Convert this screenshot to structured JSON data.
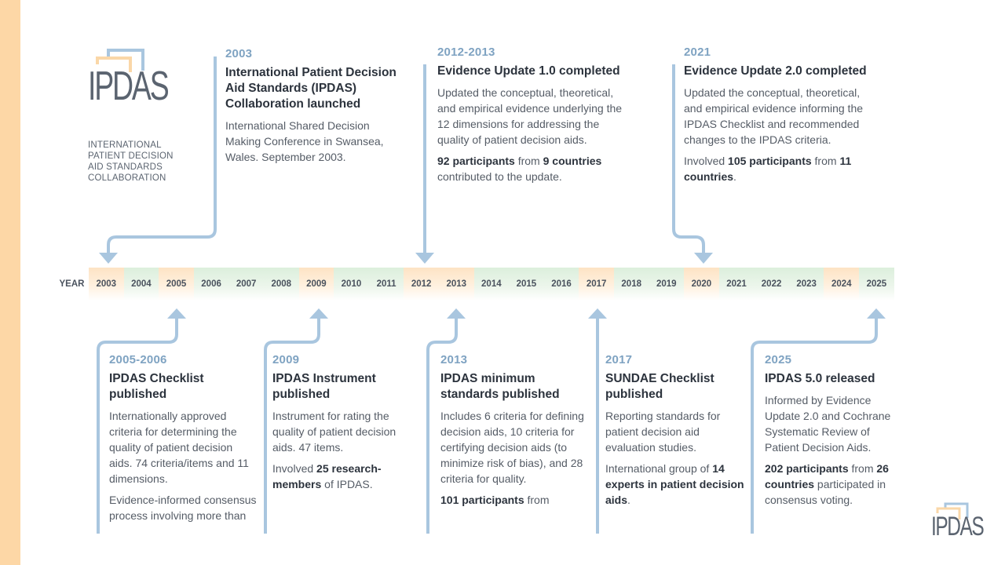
{
  "logo": {
    "wordmark": "IPDAS",
    "caption": [
      "INTERNATIONAL",
      "PATIENT DECISION",
      "AID STANDARDS",
      "COLLABORATION"
    ]
  },
  "timeline": {
    "label": "YEAR",
    "years": [
      "2003",
      "2004",
      "2005",
      "2006",
      "2007",
      "2008",
      "2009",
      "2010",
      "2011",
      "2012",
      "2013",
      "2014",
      "2015",
      "2016",
      "2017",
      "2018",
      "2019",
      "2020",
      "2021",
      "2022",
      "2023",
      "2024",
      "2025"
    ],
    "highlighted": [
      "2003",
      "2005",
      "2009",
      "2012",
      "2013",
      "2017",
      "2020",
      "2024"
    ]
  },
  "top_events": [
    {
      "year": "2003",
      "title": "International Patient Decision Aid Standards (IPDAS) Collaboration launched",
      "body": [
        "International Shared Decision Making Conference in Swansea, Wales. September 2003."
      ]
    },
    {
      "year": "2012-2013",
      "title": "Evidence Update 1.0 completed",
      "body": [
        "Updated the conceptual, theoretical, and empirical evidence underlying the 12 dimensions for addressing the quality of patient decision aids."
      ],
      "highlight_pre": "",
      "highlight_bold1": "92 participants",
      "highlight_mid": " from ",
      "highlight_bold2": "9 countries",
      "highlight_post": " contributed to the update."
    },
    {
      "year": "2021",
      "title": "Evidence Update 2.0 completed",
      "body": [
        "Updated the conceptual, theoretical, and empirical evidence informing the IPDAS Checklist and recommended changes to the IPDAS criteria."
      ],
      "highlight_pre": "Involved ",
      "highlight_bold1": "105 participants",
      "highlight_mid": " from ",
      "highlight_bold2": "11 countries",
      "highlight_post": "."
    }
  ],
  "bottom_events": [
    {
      "year": "2005-2006",
      "title": "IPDAS Checklist published",
      "body": [
        "Internationally approved criteria for determining the quality of patient decision aids. 74 criteria/items and 11 dimensions.",
        "Evidence-informed consensus process involving more than"
      ]
    },
    {
      "year": "2009",
      "title": "IPDAS Instrument published",
      "body": [
        "Instrument for rating the quality of patient decision aids. 47 items."
      ],
      "highlight_pre": "Involved ",
      "highlight_bold1": "25 research-members",
      "highlight_post": " of IPDAS."
    },
    {
      "year": "2013",
      "title": "IPDAS minimum standards published",
      "body": [
        "Includes 6 criteria for defining decision aids, 10 criteria for certifying decision aids (to minimize risk of bias), and 28 criteria for quality."
      ],
      "highlight_bold1": "101 participants",
      "highlight_post": " from"
    },
    {
      "year": "2017",
      "title": "SUNDAE Checklist published",
      "body": [
        "Reporting standards for patient decision aid evaluation studies."
      ],
      "highlight_pre": "International group of ",
      "highlight_bold1": "14 experts in patient decision aids",
      "highlight_post": "."
    },
    {
      "year": "2025",
      "title": "IPDAS 5.0 released",
      "body": [
        "Informed by Evidence Update 2.0 and Cochrane Systematic Review of Patient Decision Aids."
      ],
      "highlight_bold1": "202 participants",
      "highlight_mid": " from ",
      "highlight_bold2": "26 countries",
      "highlight_post": " participated in consensus voting."
    }
  ],
  "colors": {
    "accent_year": "#7fa3c2",
    "arrow": "#a9c6df",
    "orange_cell": "#fde3c4",
    "green_cell": "#dcefdc",
    "side_bar": "#fdd7a6"
  }
}
